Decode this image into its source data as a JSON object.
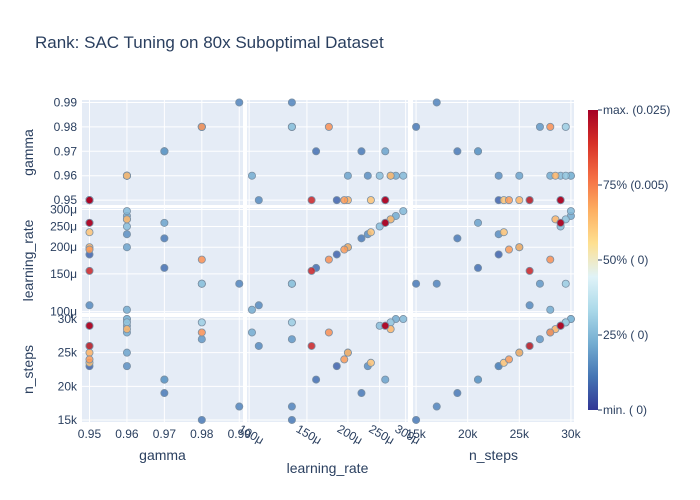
{
  "chart_data": {
    "type": "scatter",
    "title": "Rank: SAC Tuning on 80x Suboptimal Dataset",
    "dimensions": [
      {
        "name": "gamma",
        "label": "gamma",
        "range": [
          0.948,
          0.991
        ],
        "ticks": [
          0.95,
          0.96,
          0.97,
          0.98,
          0.99
        ],
        "tick_labels": [
          "0.95",
          "0.96",
          "0.97",
          "0.98",
          "0.99"
        ],
        "scale": "linear"
      },
      {
        "name": "learning_rate",
        "label": "learning_rate",
        "range": [
          9.85e-05,
          0.000305
        ],
        "ticks": [
          0.0001,
          0.00015,
          0.0002,
          0.00025,
          0.0003
        ],
        "tick_labels": [
          "100μ",
          "150μ",
          "200μ",
          "250μ",
          "300μ"
        ],
        "scale": "log"
      },
      {
        "name": "n_steps",
        "label": "n_steps",
        "range": [
          14700,
          30300
        ],
        "ticks": [
          15000,
          20000,
          25000,
          30000
        ],
        "tick_labels": [
          "15k",
          "20k",
          "25k",
          "30k"
        ],
        "scale": "linear"
      }
    ],
    "y_tick_labels": {
      "gamma": [
        "0.95",
        "0.96",
        "0.97",
        "0.98",
        "0.99"
      ],
      "learning_rate": [
        "100μ",
        "150μ",
        "200μ",
        "250μ",
        "300μ"
      ],
      "n_steps": [
        "15k",
        "20k",
        "25k",
        "30k"
      ]
    },
    "points": [
      {
        "gamma": 0.95,
        "learning_rate": 0.000185,
        "n_steps": 23000,
        "rank": 0.08
      },
      {
        "gamma": 0.96,
        "learning_rate": 0.0002,
        "n_steps": 25000,
        "rank": 0.2
      },
      {
        "gamma": 0.98,
        "learning_rate": 0.000135,
        "n_steps": 29500,
        "rank": 0.3
      },
      {
        "gamma": 0.97,
        "learning_rate": 0.00016,
        "n_steps": 21000,
        "rank": 0.1
      },
      {
        "gamma": 0.96,
        "learning_rate": 0.000295,
        "n_steps": 30000,
        "rank": 0.25
      },
      {
        "gamma": 0.95,
        "learning_rate": 0.000107,
        "n_steps": 26000,
        "rank": 0.15
      },
      {
        "gamma": 0.96,
        "learning_rate": 0.000102,
        "n_steps": 28000,
        "rank": 0.22
      },
      {
        "gamma": 0.97,
        "learning_rate": 0.00022,
        "n_steps": 19000,
        "rank": 0.12
      },
      {
        "gamma": 0.98,
        "learning_rate": 0.000135,
        "n_steps": 27000,
        "rank": 0.18
      },
      {
        "gamma": 0.99,
        "learning_rate": 0.000135,
        "n_steps": 17000,
        "rank": 0.14
      },
      {
        "gamma": 0.96,
        "learning_rate": 0.00023,
        "n_steps": 23000,
        "rank": 0.16
      },
      {
        "gamma": 0.97,
        "learning_rate": 0.00026,
        "n_steps": 21000,
        "rank": 0.2
      },
      {
        "gamma": 0.98,
        "learning_rate": 0.000135,
        "n_steps": 15000,
        "rank": 0.12
      },
      {
        "gamma": 0.96,
        "learning_rate": 0.00028,
        "n_steps": 30000,
        "rank": 0.22
      },
      {
        "gamma": 0.96,
        "learning_rate": 0.00025,
        "n_steps": 29000,
        "rank": 0.26
      },
      {
        "gamma": 0.96,
        "learning_rate": 0.00027,
        "n_steps": 29500,
        "rank": 0.28
      },
      {
        "gamma": 0.95,
        "learning_rate": 0.000155,
        "n_steps": 26000,
        "rank": 0.92
      },
      {
        "gamma": 0.95,
        "learning_rate": 0.00026,
        "n_steps": 29000,
        "rank": 1.0
      },
      {
        "gamma": 0.95,
        "learning_rate": 0.000195,
        "n_steps": 24000,
        "rank": 0.7
      },
      {
        "gamma": 0.95,
        "learning_rate": 0.0002,
        "n_steps": 25000,
        "rank": 0.66
      },
      {
        "gamma": 0.95,
        "learning_rate": 0.000235,
        "n_steps": 23500,
        "rank": 0.62
      },
      {
        "gamma": 0.98,
        "learning_rate": 0.000175,
        "n_steps": 28000,
        "rank": 0.72
      },
      {
        "gamma": 0.96,
        "learning_rate": 0.00027,
        "n_steps": 28500,
        "rank": 0.65
      },
      {
        "gamma": 0.95,
        "learning_rate": 0.00026,
        "n_steps": 29000,
        "rank": 0.85
      }
    ],
    "colorscale": {
      "colors": [
        "#313695",
        "#4575b4",
        "#74add1",
        "#abd9e9",
        "#e0f3f8",
        "#fee090",
        "#fdae61",
        "#f46d43",
        "#d73027",
        "#a50026"
      ],
      "tick_labels": [
        "max. (0.025)",
        "75% (0.005)",
        "50% (  0)",
        "25% (  0)",
        "min. (  0)"
      ],
      "tick_positions": [
        1.0,
        0.75,
        0.5,
        0.25,
        0.0
      ]
    },
    "marker": {
      "line_color": "#7a8fa3",
      "opacity": 0.85
    },
    "plot_background": "#e5ecf6",
    "grid_color": "#ffffff",
    "grid": true
  }
}
